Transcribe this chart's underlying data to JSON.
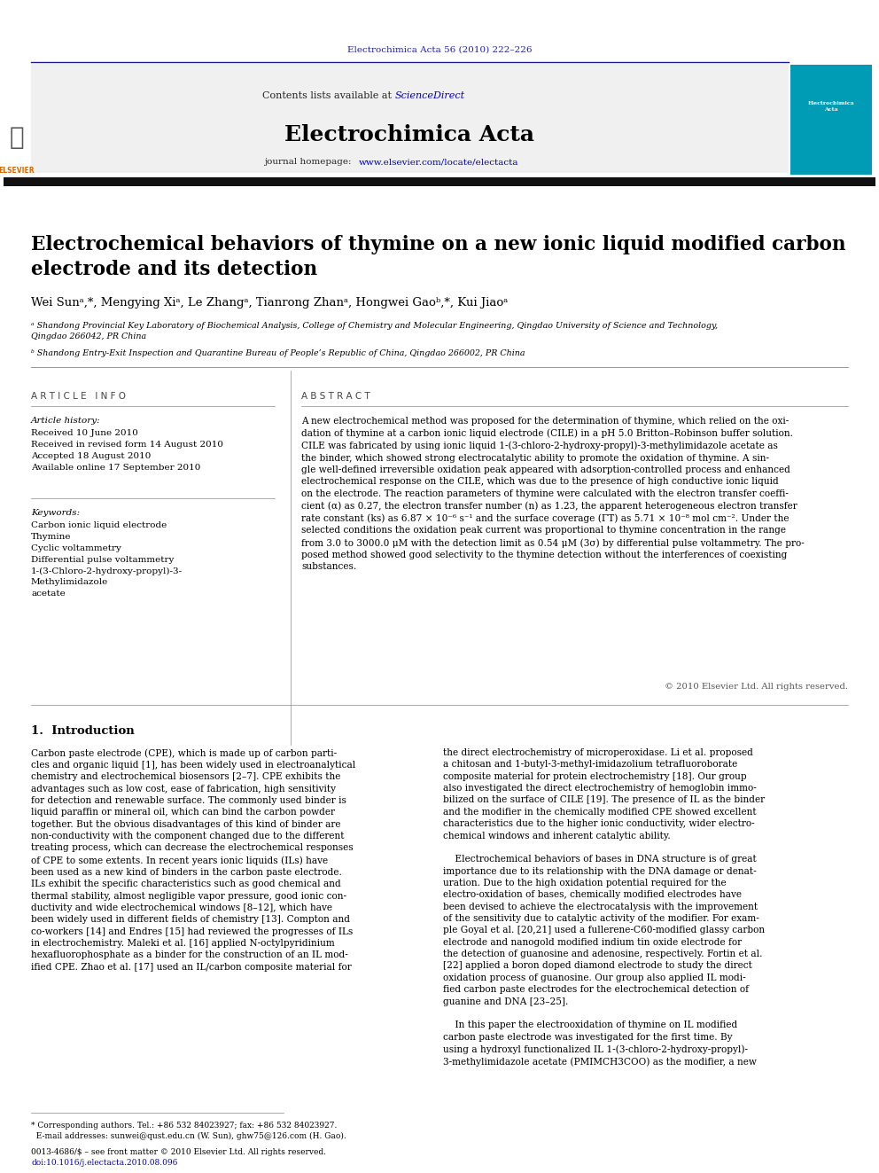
{
  "page_width": 9.92,
  "page_height": 13.23,
  "bg_color": "#ffffff",
  "journal_ref": "Electrochimica Acta 56 (2010) 222–226",
  "journal_ref_color": "#2222aa",
  "header_bg": "#f0f0f0",
  "contents_text": "Contents lists available at",
  "sciencedirect_text": "ScienceDirect",
  "sciencedirect_color": "#0000cc",
  "journal_title": "Electrochimica Acta",
  "journal_homepage_url_color": "#0000cc",
  "article_title": "Electrochemical behaviors of thymine on a new ionic liquid modified carbon\nelectrode and its detection",
  "authors": "Wei Sunᵃ,*, Mengying Xiᵃ, Le Zhangᵃ, Tianrong Zhanᵃ, Hongwei Gaoᵇ,*, Kui Jiaoᵃ",
  "affiliation_a": "ᵃ Shandong Provincial Key Laboratory of Biochemical Analysis, College of Chemistry and Molecular Engineering, Qingdao University of Science and Technology,\nQingdao 266042, PR China",
  "affiliation_b": "ᵇ Shandong Entry-Exit Inspection and Quarantine Bureau of People’s Republic of China, Qingdao 266002, PR China",
  "article_info_header": "A R T I C L E   I N F O",
  "article_history_label": "Article history:",
  "article_history": "Received 10 June 2010\nReceived in revised form 14 August 2010\nAccepted 18 August 2010\nAvailable online 17 September 2010",
  "keywords_label": "Keywords:",
  "keywords": "Carbon ionic liquid electrode\nThymine\nCyclic voltammetry\nDifferential pulse voltammetry\n1-(3-Chloro-2-hydroxy-propyl)-3-\nMethylimidazole\nacetate",
  "abstract_header": "A B S T R A C T",
  "abstract_text": "A new electrochemical method was proposed for the determination of thymine, which relied on the oxi-\ndation of thymine at a carbon ionic liquid electrode (CILE) in a pH 5.0 Britton–Robinson buffer solution.\nCILE was fabricated by using ionic liquid 1-(3-chloro-2-hydroxy-propyl)-3-methylimidazole acetate as\nthe binder, which showed strong electrocatalytic ability to promote the oxidation of thymine. A sin-\ngle well-defined irreversible oxidation peak appeared with adsorption-controlled process and enhanced\nelectrochemical response on the CILE, which was due to the presence of high conductive ionic liquid\non the electrode. The reaction parameters of thymine were calculated with the electron transfer coeffi-\ncient (α) as 0.27, the electron transfer number (n) as 1.23, the apparent heterogeneous electron transfer\nrate constant (ks) as 6.87 × 10⁻⁶ s⁻¹ and the surface coverage (ΓT) as 5.71 × 10⁻⁸ mol cm⁻². Under the\nselected conditions the oxidation peak current was proportional to thymine concentration in the range\nfrom 3.0 to 3000.0 μM with the detection limit as 0.54 μM (3σ) by differential pulse voltammetry. The pro-\nposed method showed good selectivity to the thymine detection without the interferences of coexisting\nsubstances.",
  "copyright_text": "© 2010 Elsevier Ltd. All rights reserved.",
  "section1_header": "1.  Introduction",
  "section1_col1": "Carbon paste electrode (CPE), which is made up of carbon parti-\ncles and organic liquid [1], has been widely used in electroanalytical\nchemistry and electrochemical biosensors [2–7]. CPE exhibits the\nadvantages such as low cost, ease of fabrication, high sensitivity\nfor detection and renewable surface. The commonly used binder is\nliquid paraffin or mineral oil, which can bind the carbon powder\ntogether. But the obvious disadvantages of this kind of binder are\nnon-conductivity with the component changed due to the different\ntreating process, which can decrease the electrochemical responses\nof CPE to some extents. In recent years ionic liquids (ILs) have\nbeen used as a new kind of binders in the carbon paste electrode.\nILs exhibit the specific characteristics such as good chemical and\nthermal stability, almost negligible vapor pressure, good ionic con-\nductivity and wide electrochemical windows [8–12], which have\nbeen widely used in different fields of chemistry [13]. Compton and\nco-workers [14] and Endres [15] had reviewed the progresses of ILs\nin electrochemistry. Maleki et al. [16] applied N-octylpyridinium\nhexafluorophosphate as a binder for the construction of an IL mod-\nified CPE. Zhao et al. [17] used an IL/carbon composite material for",
  "section1_col2": "the direct electrochemistry of microperoxidase. Li et al. proposed\na chitosan and 1-butyl-3-methyl-imidazolium tetrafluoroborate\ncomposite material for protein electrochemistry [18]. Our group\nalso investigated the direct electrochemistry of hemoglobin immo-\nbilized on the surface of CILE [19]. The presence of IL as the binder\nand the modifier in the chemically modified CPE showed excellent\ncharacteristics due to the higher ionic conductivity, wider electro-\nchemical windows and inherent catalytic ability.\n\n    Electrochemical behaviors of bases in DNA structure is of great\nimportance due to its relationship with the DNA damage or denat-\nuration. Due to the high oxidation potential required for the\nelectro-oxidation of bases, chemically modified electrodes have\nbeen devised to achieve the electrocatalysis with the improvement\nof the sensitivity due to catalytic activity of the modifier. For exam-\nple Goyal et al. [20,21] used a fullerene-C60-modified glassy carbon\nelectrode and nanogold modified indium tin oxide electrode for\nthe detection of guanosine and adenosine, respectively. Fortin et al.\n[22] applied a boron doped diamond electrode to study the direct\noxidation process of guanosine. Our group also applied IL modi-\nfied carbon paste electrodes for the electrochemical detection of\nguanine and DNA [23–25].\n\n    In this paper the electrooxidation of thymine on IL modified\ncarbon paste electrode was investigated for the first time. By\nusing a hydroxyl functionalized IL 1-(3-chloro-2-hydroxy-propyl)-\n3-methylimidazole acetate (PMIMCH3COO) as the modifier, a new",
  "footnote1": "* Corresponding authors. Tel.: +86 532 84023927; fax: +86 532 84023927.",
  "footnote2": "  E-mail addresses: sunwei@qust.edu.cn (W. Sun), ghw75@126.com (H. Gao).",
  "footnote3": "0013-4686/$ – see front matter © 2010 Elsevier Ltd. All rights reserved.",
  "footnote4": "doi:10.1016/j.electacta.2010.08.096",
  "top_line_color": "#1a1a8c",
  "separator_line_color": "#000000",
  "thin_line_color": "#888888"
}
